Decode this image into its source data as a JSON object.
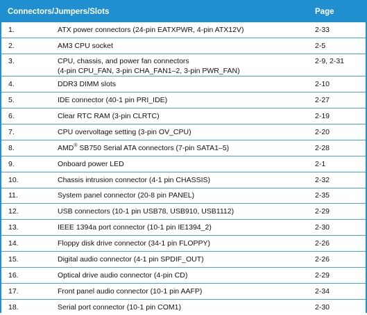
{
  "table": {
    "headers": {
      "title": "Connectors/Jumpers/Slots",
      "page": "Page"
    },
    "rows": [
      {
        "num": "1.",
        "desc": "ATX power connectors (24-pin EATXPWR, 4-pin ATX12V)",
        "page": "2-33"
      },
      {
        "num": "2.",
        "desc": "AM3 CPU socket",
        "page": "2-5"
      },
      {
        "num": "3.",
        "desc": "CPU, chassis, and power fan connectors",
        "desc2": "(4-pin CPU_FAN, 3-pin CHA_FAN1–2, 3-pin PWR_FAN)",
        "page": "2-9, 2-31"
      },
      {
        "num": "4.",
        "desc": "DDR3 DIMM slots",
        "page": "2-10"
      },
      {
        "num": "5.",
        "desc": "IDE connector (40-1 pin PRI_IDE)",
        "page": "2-27"
      },
      {
        "num": "6.",
        "desc": "Clear RTC RAM (3-pin CLRTC)",
        "page": "2-19"
      },
      {
        "num": "7.",
        "desc": "CPU overvoltage setting (3-pin OV_CPU)",
        "page": "2-20"
      },
      {
        "num": "8.",
        "desc_pre": "AMD",
        "desc_sup": "®",
        "desc": " SB750 Serial ATA connectors (7-pin SATA1–5)",
        "page": "2-28"
      },
      {
        "num": "9.",
        "desc": "Onboard power LED",
        "page": "2-1"
      },
      {
        "num": "10.",
        "desc": "Chassis intrusion connector (4-1 pin CHASSIS)",
        "page": "2-32"
      },
      {
        "num": "11.",
        "desc": "System panel connector (20-8 pin PANEL)",
        "page": "2-35"
      },
      {
        "num": "12.",
        "desc": "USB connectors (10-1 pin USB78, USB910, USB1112)",
        "page": "2-29"
      },
      {
        "num": "13.",
        "desc": "IEEE 1394a port connector (10-1 pin IE1394_2)",
        "page": "2-30"
      },
      {
        "num": "14.",
        "desc": "Floppy disk drive connector (34-1 pin FLOPPY)",
        "page": "2-26"
      },
      {
        "num": "15.",
        "desc": "Digital audio connector (4-1 pin SPDIF_OUT)",
        "page": "2-26"
      },
      {
        "num": "16.",
        "desc": "Optical drive audio connector (4-pin CD)",
        "page": "2-29"
      },
      {
        "num": "17.",
        "desc": "Front panel audio connector (10-1 pin AAFP)",
        "page": "2-34"
      },
      {
        "num": "18.",
        "desc": "Serial port connector (10-1 pin COM1)",
        "page": "2-30"
      }
    ]
  },
  "colors": {
    "accent": "#1f8fd0",
    "row_line": "#41a6de"
  }
}
